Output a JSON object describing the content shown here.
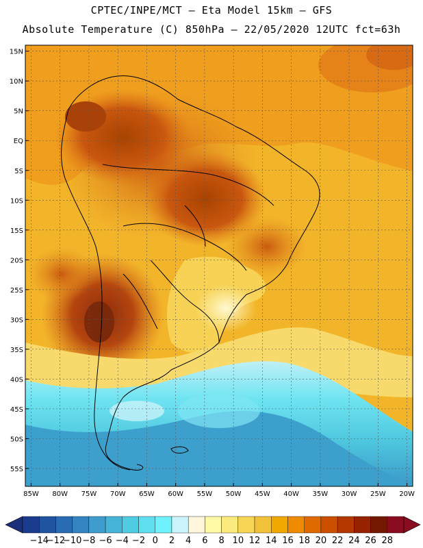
{
  "title": {
    "line1": "CPTEC/INPE/MCT –  Eta Model 15km – GFS",
    "line2": "Absolute Temperature (C) 850hPa – 22/05/2020 12UTC fct=63h"
  },
  "map_data": {
    "type": "contour-map",
    "variable": "Absolute Temperature (C)",
    "level": "850hPa",
    "lon_range": [
      -86,
      -19
    ],
    "lat_range": [
      -58,
      16
    ],
    "lat_ticks": [
      {
        "v": 15,
        "label": "15N"
      },
      {
        "v": 10,
        "label": "10N"
      },
      {
        "v": 5,
        "label": "5N"
      },
      {
        "v": 0,
        "label": "EQ"
      },
      {
        "v": -5,
        "label": "5S"
      },
      {
        "v": -10,
        "label": "10S"
      },
      {
        "v": -15,
        "label": "15S"
      },
      {
        "v": -20,
        "label": "20S"
      },
      {
        "v": -25,
        "label": "25S"
      },
      {
        "v": -30,
        "label": "30S"
      },
      {
        "v": -35,
        "label": "35S"
      },
      {
        "v": -40,
        "label": "40S"
      },
      {
        "v": -45,
        "label": "45S"
      },
      {
        "v": -50,
        "label": "50S"
      },
      {
        "v": -55,
        "label": "55S"
      }
    ],
    "lon_ticks": [
      {
        "v": -85,
        "label": "85W"
      },
      {
        "v": -80,
        "label": "80W"
      },
      {
        "v": -75,
        "label": "75W"
      },
      {
        "v": -70,
        "label": "70W"
      },
      {
        "v": -65,
        "label": "65W"
      },
      {
        "v": -60,
        "label": "60W"
      },
      {
        "v": -55,
        "label": "55W"
      },
      {
        "v": -50,
        "label": "50W"
      },
      {
        "v": -45,
        "label": "45W"
      },
      {
        "v": -40,
        "label": "40W"
      },
      {
        "v": -35,
        "label": "35W"
      },
      {
        "v": -30,
        "label": "30W"
      },
      {
        "v": -25,
        "label": "25W"
      },
      {
        "v": -20,
        "label": "20W"
      }
    ],
    "grid": true
  },
  "colorbar": {
    "labels": [
      "-14",
      "-12",
      "-10",
      "-8",
      "-6",
      "-4",
      "-2",
      "0",
      "2",
      "4",
      "6",
      "8",
      "10",
      "12",
      "14",
      "16",
      "18",
      "20",
      "22",
      "24",
      "26",
      "28"
    ],
    "colors": [
      "#1b3c8c",
      "#2154a0",
      "#2a6cb3",
      "#3484c1",
      "#3f9ccd",
      "#45b4d8",
      "#4fcbe2",
      "#5fdff0",
      "#6ff2fb",
      "#cbf3fb",
      "#fff6dc",
      "#fff9a8",
      "#fbea7e",
      "#f6d654",
      "#f2c13a",
      "#f0a700",
      "#ee8b00",
      "#e06a00",
      "#cc4f00",
      "#b43800",
      "#962200",
      "#741800",
      "#8a0c20"
    ],
    "under_color": "#1b2f7a",
    "over_color": "#8a0c20"
  }
}
